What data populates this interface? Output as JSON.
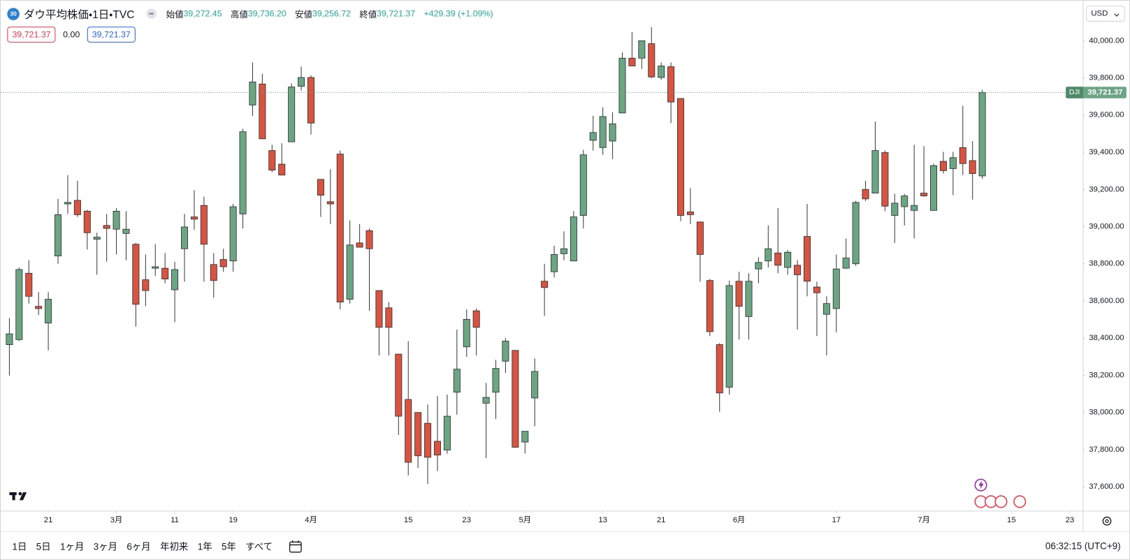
{
  "header": {
    "badge": "30",
    "title": "ダウ平均株価・1日・TVC",
    "ohlc": [
      {
        "label": "始値",
        "value": "39,272.45"
      },
      {
        "label": "高値",
        "value": "39,736.20"
      },
      {
        "label": "安値",
        "value": "39,256.72"
      },
      {
        "label": "終値",
        "value": "39,721.37"
      }
    ],
    "change": "+429.39 (+1.09%)"
  },
  "price_tags": {
    "sell": "39,721.37",
    "spread": "0.00",
    "buy": "39,721.37"
  },
  "currency": "USD",
  "chart_data": {
    "type": "candlestick",
    "symbol": "DJI",
    "last_price_label": "39,721.37",
    "up_color": "#6ba583",
    "down_color": "#d75442",
    "open": [
      38365,
      38392,
      38749,
      38571,
      38481,
      38842,
      39122,
      39141,
      39083,
      38932,
      39006,
      38986,
      38963,
      38905,
      38714,
      38776,
      38776,
      38660,
      38881,
      39052,
      39114,
      38796,
      38823,
      38815,
      39068,
      39654,
      39767,
      39409,
      39336,
      39456,
      39755,
      39802,
      39254,
      39134,
      39390,
      38609,
      38912,
      38978,
      38656,
      38563,
      38314,
      38070,
      38000,
      37942,
      37845,
      37798,
      38109,
      38353,
      38547,
      38050,
      38109,
      38276,
      38334,
      37841,
      38078,
      38706,
      38757,
      38854,
      38815,
      39060,
      39464,
      39425,
      39460,
      39611,
      39906,
      39906,
      39984,
      39802,
      39860,
      39689,
      39079,
      39025,
      38710,
      38365,
      38136,
      38706,
      38516,
      38772,
      38815,
      38858,
      38780,
      38792,
      38947,
      38675,
      38528,
      38559,
      38776,
      38800,
      39200,
      39180,
      39398,
      39060,
      39107,
      39087,
      39180,
      39087,
      39351,
      39312,
      39425,
      39355,
      39272.45
    ],
    "high": [
      38508,
      38780,
      38819,
      38648,
      38648,
      39149,
      39277,
      39246,
      39090,
      38967,
      39068,
      39099,
      39083,
      38912,
      38850,
      38905,
      38858,
      38811,
      39068,
      39196,
      39161,
      38858,
      38881,
      39122,
      39526,
      39883,
      39821,
      39440,
      39448,
      39770,
      39860,
      39813,
      39254,
      39308,
      39409,
      39033,
      39013,
      38990,
      38656,
      38594,
      38314,
      38384,
      38000,
      38043,
      38089,
      38097,
      38446,
      38555,
      38559,
      38159,
      38283,
      38400,
      38334,
      37899,
      38291,
      38800,
      38897,
      38974,
      39083,
      39413,
      39596,
      39642,
      39615,
      39937,
      40046,
      40000,
      40073,
      39883,
      39883,
      39689,
      39207,
      39025,
      38718,
      38373,
      38710,
      38757,
      38749,
      38835,
      39006,
      39099,
      38874,
      38819,
      39122,
      38703,
      38625,
      38850,
      38936,
      39138,
      39246,
      39565,
      39409,
      39176,
      39176,
      39440,
      39433,
      39339,
      39402,
      39402,
      39650,
      39460,
      39736.2
    ],
    "low": [
      38198,
      38384,
      38586,
      38524,
      38334,
      38800,
      39068,
      39052,
      38877,
      38741,
      38811,
      38850,
      38819,
      38462,
      38571,
      38734,
      38695,
      38485,
      38703,
      38982,
      38703,
      38617,
      38757,
      38757,
      38990,
      39596,
      39472,
      39293,
      39277,
      39456,
      39732,
      39495,
      39052,
      39013,
      38555,
      38586,
      38889,
      38547,
      38307,
      38307,
      37879,
      37662,
      37701,
      37615,
      37685,
      37779,
      37988,
      38299,
      38307,
      37755,
      37965,
      38213,
      37810,
      37779,
      37926,
      38520,
      38726,
      38819,
      38815,
      38990,
      39409,
      39386,
      39363,
      39611,
      39864,
      39848,
      39798,
      39790,
      39557,
      39029,
      39013,
      38703,
      38411,
      38004,
      38097,
      38392,
      38392,
      38695,
      38780,
      38749,
      38741,
      38446,
      38625,
      38411,
      38307,
      38431,
      38772,
      38788,
      39138,
      39180,
      39083,
      38912,
      39006,
      38936,
      39161,
      39087,
      39285,
      39169,
      39277,
      39145,
      39256.72
    ],
    "close": [
      38423,
      38769,
      38625,
      38559,
      38609,
      39064,
      39130,
      39064,
      38967,
      38943,
      38990,
      39083,
      38986,
      38582,
      38656,
      38784,
      38718,
      38769,
      38998,
      39040,
      38905,
      38710,
      38784,
      39107,
      39510,
      39778,
      39472,
      39304,
      39277,
      39751,
      39802,
      39557,
      39169,
      39122,
      38594,
      38901,
      38889,
      38881,
      38458,
      38458,
      37980,
      37732,
      37767,
      37759,
      37771,
      37980,
      38233,
      38501,
      38458,
      38081,
      38237,
      38384,
      37813,
      37899,
      38221,
      38672,
      38850,
      38881,
      39052,
      39386,
      39506,
      39592,
      39553,
      39906,
      39864,
      40000,
      39805,
      39864,
      39670,
      39060,
      39064,
      38850,
      38435,
      38105,
      38683,
      38571,
      38706,
      38807,
      38881,
      38792,
      38862,
      38741,
      38706,
      38644,
      38586,
      38772,
      38831,
      39130,
      39149,
      39409,
      39110,
      39126,
      39165,
      39114,
      39165,
      39328,
      39301,
      39371,
      39339,
      39285,
      39721.37
    ],
    "ylim": [
      37470,
      40215
    ],
    "yticks": [
      {
        "value": 37600,
        "label": "37,600.00"
      },
      {
        "value": 37800,
        "label": "37,800.00"
      },
      {
        "value": 38000,
        "label": "38,000.00"
      },
      {
        "value": 38200,
        "label": "38,200.00"
      },
      {
        "value": 38400,
        "label": "38,400.00"
      },
      {
        "value": 38600,
        "label": "38,600.00"
      },
      {
        "value": 38800,
        "label": "38,800.00"
      },
      {
        "value": 39000,
        "label": "39,000.00"
      },
      {
        "value": 39200,
        "label": "39,200.00"
      },
      {
        "value": 39400,
        "label": "39,400.00"
      },
      {
        "value": 39600,
        "label": "39,600.00"
      },
      {
        "value": 39800,
        "label": "39,800.00"
      },
      {
        "value": 40000,
        "label": "40,000.00"
      }
    ],
    "xlim": [
      -0.89,
      110.37
    ],
    "xticks": [
      {
        "value": 4,
        "label": "21"
      },
      {
        "value": 11,
        "label": "3月"
      },
      {
        "value": 17,
        "label": "11"
      },
      {
        "value": 23,
        "label": "19"
      },
      {
        "value": 31,
        "label": "4月"
      },
      {
        "value": 41,
        "label": "15"
      },
      {
        "value": 47,
        "label": "23"
      },
      {
        "value": 53,
        "label": "5月"
      },
      {
        "value": 61,
        "label": "13"
      },
      {
        "value": 67,
        "label": "21"
      },
      {
        "value": 75,
        "label": "6月"
      },
      {
        "value": 85,
        "label": "17"
      },
      {
        "value": 94,
        "label": "7月"
      },
      {
        "value": 103,
        "label": "15"
      },
      {
        "value": 109,
        "label": "23"
      }
    ],
    "grid": false
  },
  "toolbar": {
    "ranges": [
      "1日",
      "5日",
      "1ヶ月",
      "3ヶ月",
      "6ヶ月",
      "年初来",
      "1年",
      "5年",
      "すべて"
    ],
    "clock": "06:32:15 (UTC+9)"
  }
}
